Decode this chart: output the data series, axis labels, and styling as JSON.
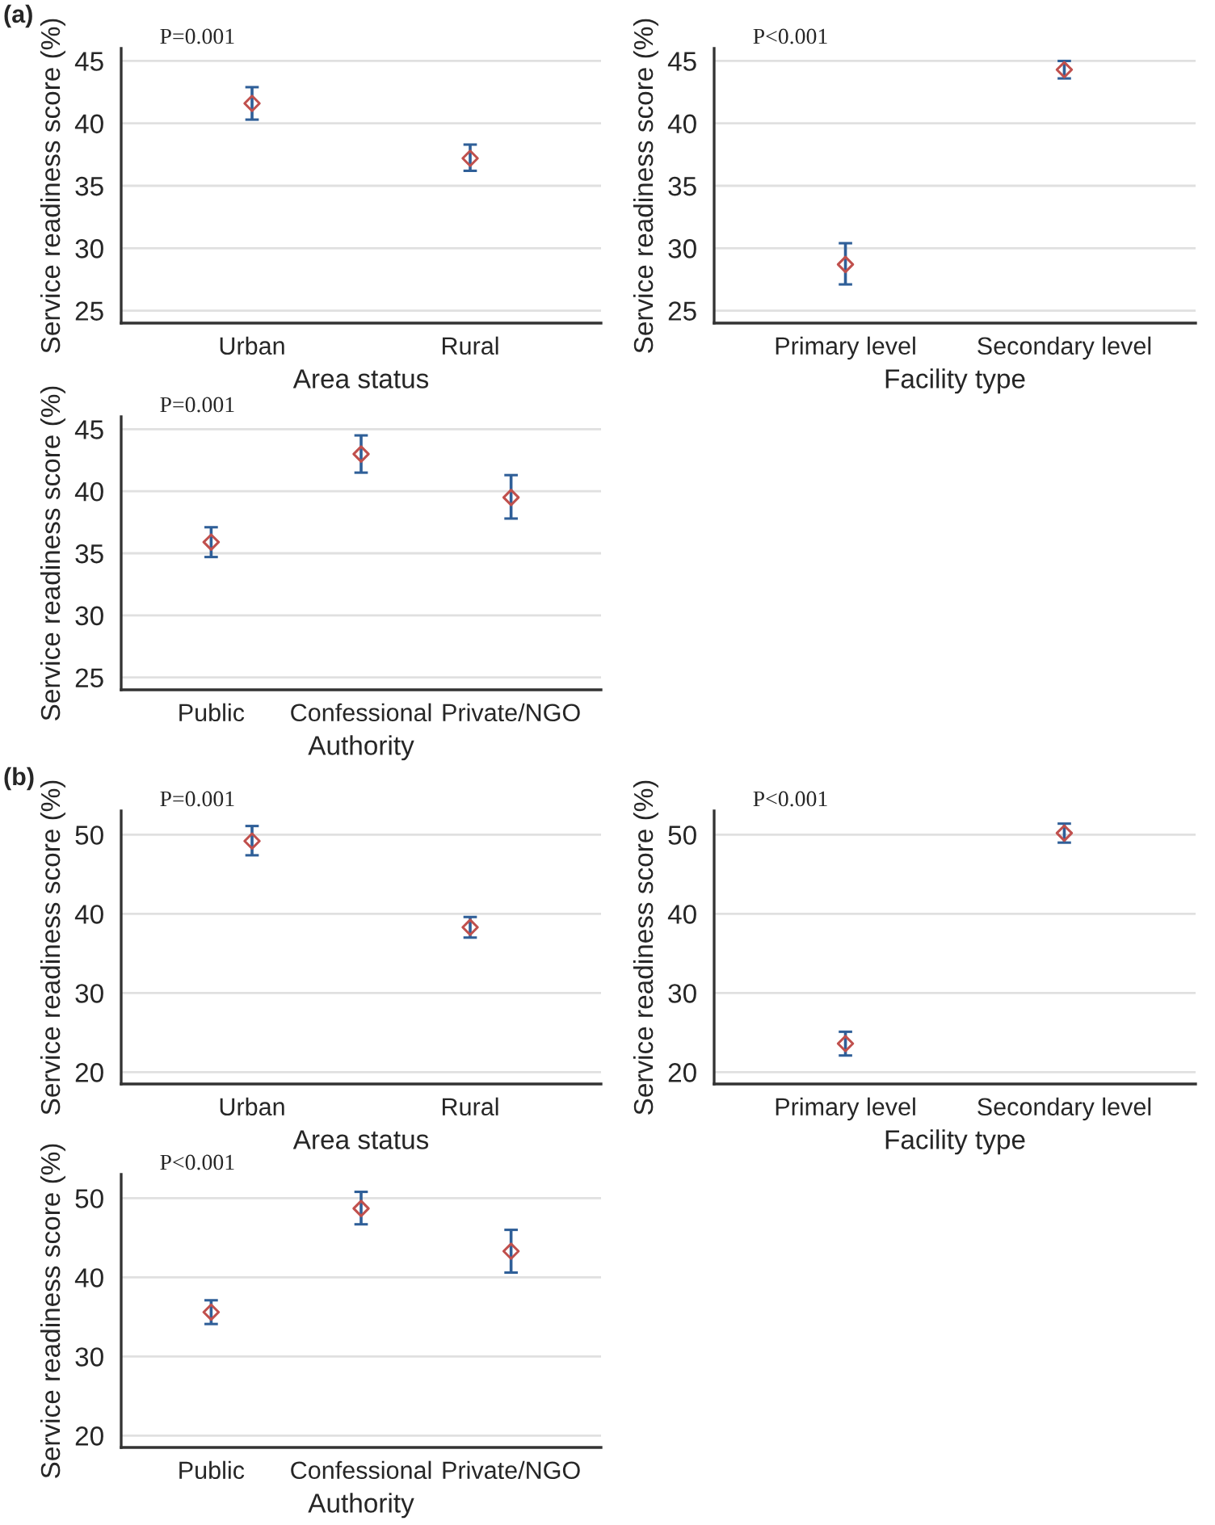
{
  "chart_data": [
    {
      "type": "scatter",
      "xlabel": "Area status",
      "ylabel": "Service readiness score (%)",
      "annotations": [
        "P=0.001",
        "(a)"
      ],
      "categories": [
        "Urban",
        "Rural"
      ],
      "series": [
        {
          "color": "#c0504d",
          "values": [
            41.6,
            37.2
          ],
          "errors": [
            [
              40.3,
              42.9
            ],
            [
              36.2,
              38.3
            ]
          ]
        }
      ],
      "ylim": [
        24,
        46
      ],
      "yticks": [
        25,
        30,
        35,
        40,
        45
      ],
      "grid": "y",
      "marker": "diamond"
    },
    {
      "type": "scatter",
      "xlabel": "Facility type",
      "ylabel": "Service readiness score (%)",
      "annotations": [
        "P<0.001"
      ],
      "categories": [
        "Primary level",
        "Secondary level"
      ],
      "series": [
        {
          "color": "#c0504d",
          "values": [
            28.7,
            44.3
          ],
          "errors": [
            [
              27.1,
              30.4
            ],
            [
              43.6,
              45.0
            ]
          ]
        }
      ],
      "ylim": [
        24,
        46
      ],
      "yticks": [
        25,
        30,
        35,
        40,
        45
      ],
      "grid": "y",
      "marker": "diamond"
    },
    {
      "type": "scatter",
      "xlabel": "Authority",
      "ylabel": "Service readiness score (%)",
      "annotations": [
        "P=0.001"
      ],
      "categories": [
        "Public",
        "Confessional",
        "Private/NGO"
      ],
      "series": [
        {
          "color": "#c0504d",
          "values": [
            35.9,
            43.0,
            39.5
          ],
          "errors": [
            [
              34.7,
              37.1
            ],
            [
              41.5,
              44.5
            ],
            [
              37.8,
              41.3
            ]
          ]
        }
      ],
      "ylim": [
        24,
        46
      ],
      "yticks": [
        25,
        30,
        35,
        40,
        45
      ],
      "grid": "y",
      "marker": "diamond"
    },
    {
      "type": "scatter",
      "xlabel": "Area status",
      "ylabel": "Service readiness score (%)",
      "annotations": [
        "P=0.001",
        "(b)"
      ],
      "categories": [
        "Urban",
        "Rural"
      ],
      "series": [
        {
          "color": "#c0504d",
          "values": [
            49.2,
            38.3
          ],
          "errors": [
            [
              47.4,
              51.1
            ],
            [
              37.0,
              39.6
            ]
          ]
        }
      ],
      "ylim": [
        18.5,
        53
      ],
      "yticks": [
        20,
        30,
        40,
        50
      ],
      "grid": "y",
      "marker": "diamond"
    },
    {
      "type": "scatter",
      "xlabel": "Facility type",
      "ylabel": "Service readiness score (%)",
      "annotations": [
        "P<0.001"
      ],
      "categories": [
        "Primary level",
        "Secondary level"
      ],
      "series": [
        {
          "color": "#c0504d",
          "values": [
            23.6,
            50.2
          ],
          "errors": [
            [
              22.1,
              25.1
            ],
            [
              49.0,
              51.4
            ]
          ]
        }
      ],
      "ylim": [
        18.5,
        53
      ],
      "yticks": [
        20,
        30,
        40,
        50
      ],
      "grid": "y",
      "marker": "diamond"
    },
    {
      "type": "scatter",
      "xlabel": "Authority",
      "ylabel": "Service readiness score (%)",
      "annotations": [
        "P<0.001"
      ],
      "categories": [
        "Public",
        "Confessional",
        "Private/NGO"
      ],
      "series": [
        {
          "color": "#c0504d",
          "values": [
            35.6,
            48.7,
            43.3
          ],
          "errors": [
            [
              34.1,
              37.1
            ],
            [
              46.7,
              50.8
            ],
            [
              40.6,
              46.0
            ]
          ]
        }
      ],
      "ylim": [
        18.5,
        53
      ],
      "yticks": [
        20,
        30,
        40,
        50
      ],
      "grid": "y",
      "marker": "diamond"
    }
  ]
}
